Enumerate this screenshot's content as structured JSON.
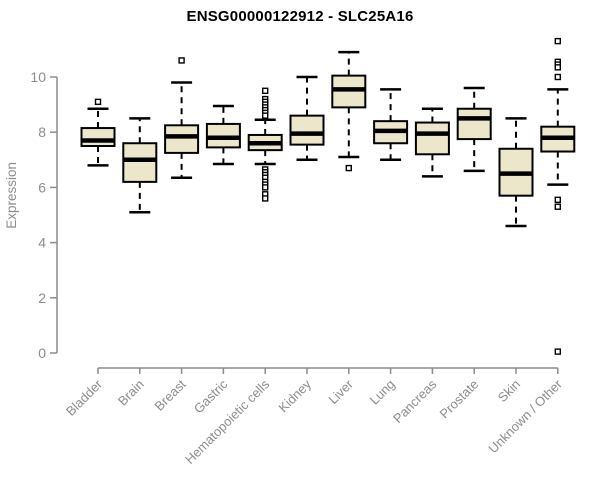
{
  "chart_data": {
    "type": "boxplot",
    "title": "ENSG00000122912 - SLC25A16",
    "ylabel": "Expression",
    "xlabel": "",
    "yticks": [
      0,
      2,
      4,
      6,
      8,
      10
    ],
    "ylim": [
      0,
      11.5
    ],
    "grid": false,
    "legend": false,
    "categories": [
      "Bladder",
      "Brain",
      "Breast",
      "Gastric",
      "Hematopoietic cells",
      "Kidney",
      "Liver",
      "Lung",
      "Pancreas",
      "Prostate",
      "Skin",
      "Unknown / Other"
    ],
    "series": [
      {
        "name": "Bladder",
        "low": 6.8,
        "q1": 7.5,
        "median": 7.7,
        "q3": 8.15,
        "high": 8.85,
        "outliers": [
          9.1
        ]
      },
      {
        "name": "Brain",
        "low": 5.1,
        "q1": 6.2,
        "median": 7.0,
        "q3": 7.6,
        "high": 8.5,
        "outliers": []
      },
      {
        "name": "Breast",
        "low": 6.35,
        "q1": 7.25,
        "median": 7.85,
        "q3": 8.25,
        "high": 9.8,
        "outliers": [
          10.6
        ]
      },
      {
        "name": "Gastric",
        "low": 6.85,
        "q1": 7.45,
        "median": 7.8,
        "q3": 8.3,
        "high": 8.95,
        "outliers": []
      },
      {
        "name": "Hematopoietic cells",
        "low": 6.85,
        "q1": 7.35,
        "median": 7.6,
        "q3": 7.9,
        "high": 8.45,
        "outliers": [
          9.5,
          9.2,
          9.1,
          9.0,
          8.9,
          8.8,
          8.7,
          8.6,
          6.65,
          6.55,
          6.45,
          6.35,
          6.2,
          6.1,
          6.0,
          5.75,
          5.6
        ]
      },
      {
        "name": "Kidney",
        "low": 7.0,
        "q1": 7.55,
        "median": 7.95,
        "q3": 8.6,
        "high": 10.0,
        "outliers": []
      },
      {
        "name": "Liver",
        "low": 7.1,
        "q1": 8.9,
        "median": 9.55,
        "q3": 10.05,
        "high": 10.9,
        "outliers": [
          6.7
        ]
      },
      {
        "name": "Lung",
        "low": 7.0,
        "q1": 7.6,
        "median": 8.05,
        "q3": 8.4,
        "high": 9.55,
        "outliers": []
      },
      {
        "name": "Pancreas",
        "low": 6.4,
        "q1": 7.2,
        "median": 7.95,
        "q3": 8.35,
        "high": 8.85,
        "outliers": []
      },
      {
        "name": "Prostate",
        "low": 6.6,
        "q1": 7.75,
        "median": 8.5,
        "q3": 8.85,
        "high": 9.6,
        "outliers": []
      },
      {
        "name": "Skin",
        "low": 4.6,
        "q1": 5.7,
        "median": 6.5,
        "q3": 7.4,
        "high": 8.5,
        "outliers": []
      },
      {
        "name": "Unknown / Other",
        "low": 6.1,
        "q1": 7.3,
        "median": 7.8,
        "q3": 8.2,
        "high": 9.55,
        "outliers": [
          11.3,
          10.55,
          10.45,
          10.35,
          10.0,
          5.55,
          5.3,
          0.05
        ]
      }
    ],
    "colors": {
      "box_fill": "#ece7cb",
      "box_stroke": "#000000",
      "median": "#000000",
      "outlier_fill": "#ffffff",
      "axis": "#8c8c8c",
      "title": "#000000"
    }
  }
}
